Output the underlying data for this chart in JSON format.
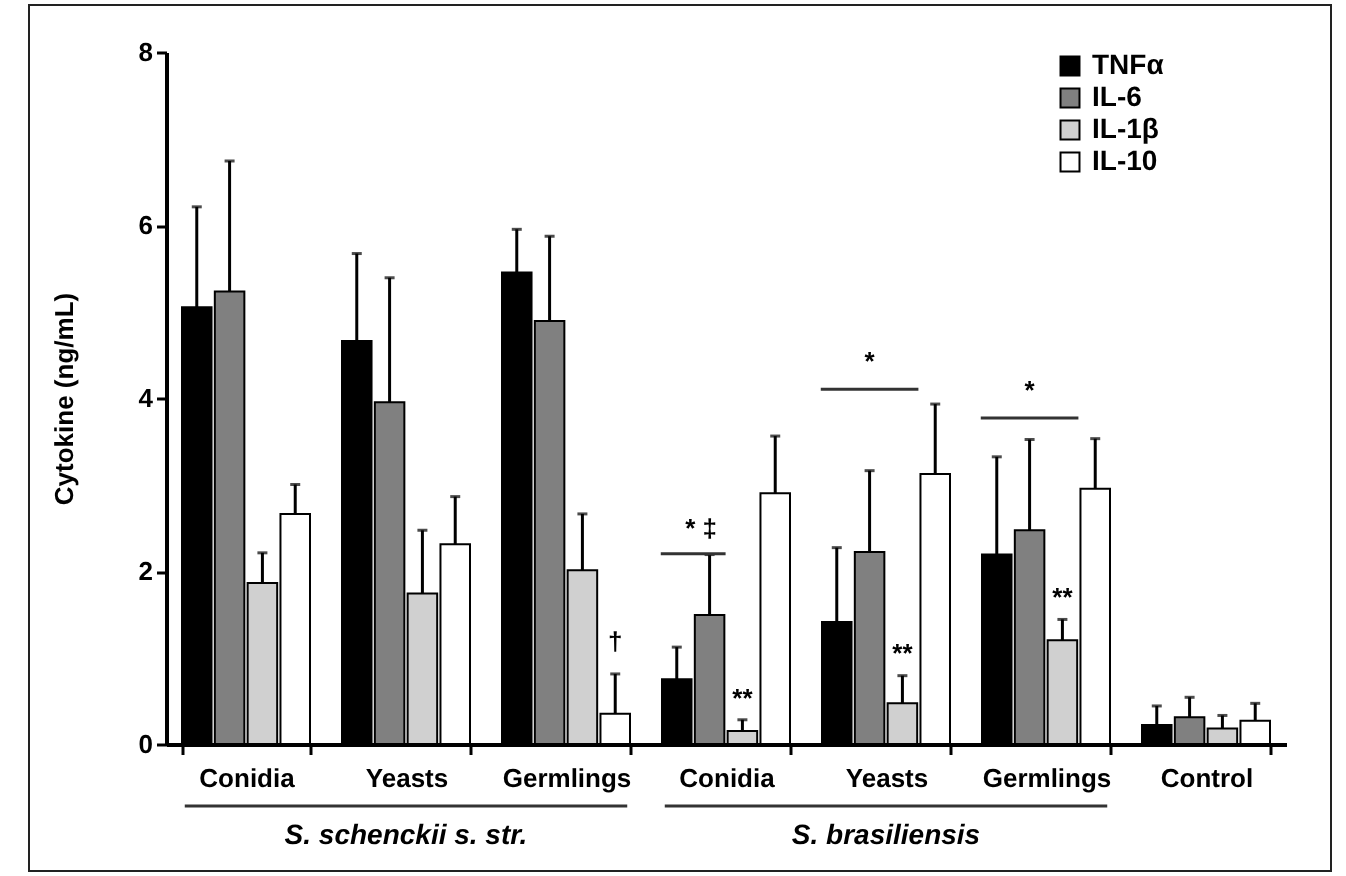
{
  "chart_data": {
    "type": "bar",
    "ylabel": "Cytokine (ng/mL)",
    "categories": [
      "Conidia",
      "Yeasts",
      "Germlings",
      "Conidia",
      "Yeasts",
      "Germlings",
      "Control"
    ],
    "series": [
      {
        "name": "TNFα",
        "color": "#000000",
        "values": [
          5.05,
          4.66,
          5.45,
          0.75,
          1.41,
          2.19,
          0.22
        ],
        "errors": [
          [
            5.05,
            6.21
          ],
          [
            4.66,
            5.67
          ],
          [
            5.45,
            5.95
          ],
          [
            0.75,
            1.12
          ],
          [
            1.41,
            2.27
          ],
          [
            2.19,
            3.32
          ],
          [
            0.22,
            0.44
          ]
        ]
      },
      {
        "name": "IL-6",
        "color": "#808080",
        "values": [
          5.23,
          3.95,
          4.89,
          1.49,
          2.22,
          2.47,
          0.31
        ],
        "errors": [
          [
            5.23,
            6.74
          ],
          [
            3.95,
            5.39
          ],
          [
            4.89,
            5.87
          ],
          [
            1.49,
            2.19
          ],
          [
            2.22,
            3.16
          ],
          [
            2.47,
            3.52
          ],
          [
            0.31,
            0.54
          ]
        ]
      },
      {
        "name": "IL-1β",
        "color": "#d0d0d0",
        "values": [
          1.86,
          1.74,
          2.01,
          0.15,
          0.47,
          1.2,
          0.18
        ],
        "errors": [
          [
            1.86,
            2.21
          ],
          [
            1.74,
            2.47
          ],
          [
            2.01,
            2.66
          ],
          [
            0.15,
            0.28
          ],
          [
            0.47,
            0.79
          ],
          [
            1.2,
            1.44
          ],
          [
            0.18,
            0.33
          ]
        ]
      },
      {
        "name": "IL-10",
        "color": "#ffffff",
        "values": [
          2.66,
          2.31,
          0.35,
          2.9,
          3.12,
          2.95,
          0.27
        ],
        "errors": [
          [
            2.66,
            3.0
          ],
          [
            2.31,
            2.86
          ],
          [
            0.35,
            0.81
          ],
          [
            2.9,
            3.56
          ],
          [
            3.12,
            3.93
          ],
          [
            2.95,
            3.53
          ],
          [
            0.27,
            0.47
          ]
        ]
      }
    ],
    "ylim": [
      0,
      8
    ],
    "yticks": [
      0,
      2,
      4,
      6,
      8
    ],
    "legend": "top right",
    "annotations": [
      "S. schenckii s. str.",
      "S. brasiliensis",
      "†",
      "* ‡",
      "**",
      "*",
      "**",
      "*",
      "**"
    ]
  }
}
